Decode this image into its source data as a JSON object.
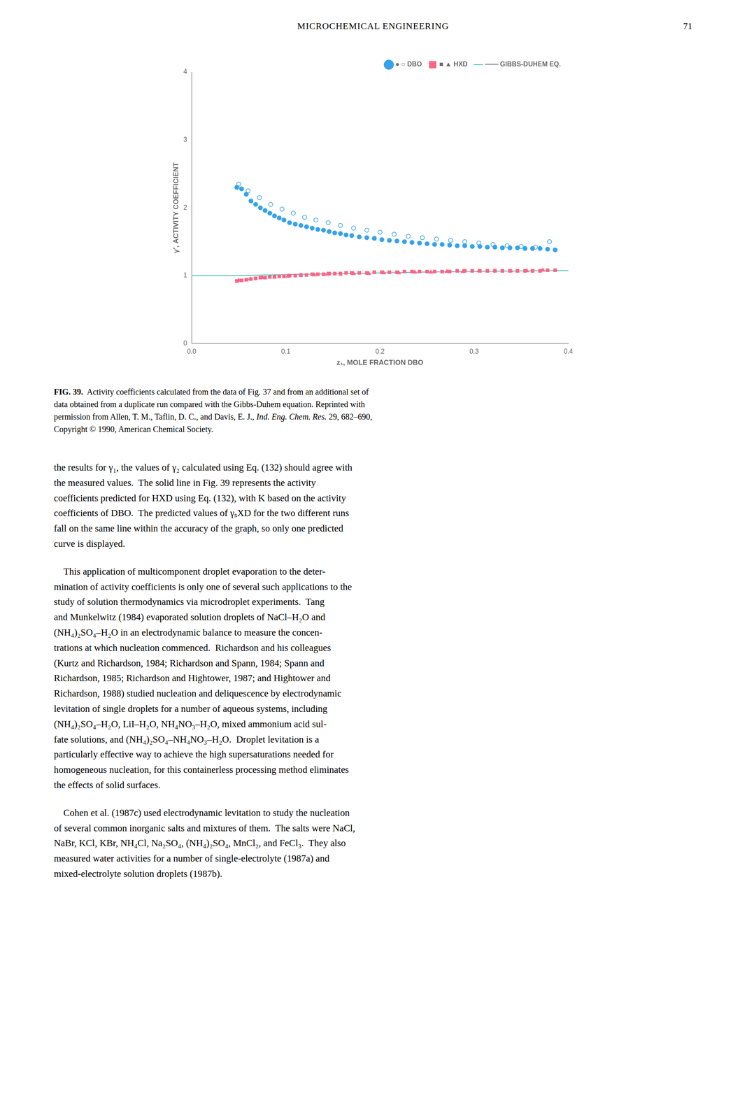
{
  "page_header": "MICROCHEMICAL ENGINEERING",
  "page_number": "71",
  "caption": {
    "label": "FIG. 39.",
    "text": "  Activity coefficients calculated from the data of Fig. 37 and from an additional set of\ndata obtained from a duplicate run compared with the Gibbs-Duhem equation. Reprinted with\npermission from Allen, T. M., Taflin, D. C., and Davis, E. J., ",
    "italic": "Ind. Eng. Chem. Res.",
    "end": " 29, 682–690,\nCopyright © 1990, American Chemical Society."
  },
  "body_text": [
    "the results for γ₁, the values of γ₂ calculated using Eq. (132) should agree with\nthe measured values.  The solid line in Fig. 39 represents the activity\ncoefficients predicted for HXD using Eq. (132), with K based on the activity\ncoefficients of DBO.  The predicted values of γₛXD for the two different runs\nfall on the same line within the accuracy of the graph, so only one predicted\ncurve is displayed.",
    "    This application of multicomponent droplet evaporation to the deter-\nmination of activity coefficients is only one of several such applications to the\nstudy of solution thermodynamics via microdroplet experiments.  Tang\nand Munkelwitz (1984) evaporated solution droplets of NaCl–H₂O and\n(NH₄)₂SO₄–H₂O in an electrodynamic balance to measure the concen-\ntrations at which nucleation commenced.  Richardson and his colleagues\n(Kurtz and Richardson, 1984; Richardson and Spann, 1984; Spann and\nRichardson, 1985; Richardson and Hightower, 1987; and Hightower and\nRichardson, 1988) studied nucleation and deliquescence by electrodynamic\nlevitation of single droplets for a number of aqueous systems, including\n(NH₄)₂SO₄–H₂O, LiI–H₂O, NH₄NO₃–H₂O, mixed ammonium acid sul-\nfate solutions, and (NH₄)₂SO₄–NH₄NO₃–H₂O.  Droplet levitation is a\nparticularly effective way to achieve the high supersaturations needed for\nhomogeneous nucleation, for this containerless processing method eliminates\nthe effects of solid surfaces.",
    "    Cohen et al. (1987c) used electrodynamic levitation to study the nucleation\nof several common inorganic salts and mixtures of them.  The salts were NaCl,\nNaBr, KCl, KBr, NH₄Cl, Na₂SO₄, (NH₄)₂SO₄, MnCl₂, and FeCl₃.  They also\nmeasured water activities for a number of single-electrolyte (1987a) and\nmixed-electrolyte solution droplets (1987b)."
  ],
  "chart_data": {
    "type": "scatter",
    "xlabel": "z₁, MOLE FRACTION DBO",
    "ylabel": "γ′, ACTIVITY COEFFICIENT",
    "xlim": [
      0,
      0.4
    ],
    "ylim": [
      0,
      4
    ],
    "xticks": [
      {
        "value": 0,
        "label": "0.0"
      },
      0.1,
      0.2,
      0.3,
      0.4
    ],
    "yticks": [
      0,
      1,
      2,
      3,
      4
    ],
    "grid": false,
    "legend": "upper right",
    "series": [
      {
        "name": "● ○ DBO",
        "color": "#36a2eb",
        "marker": "circle",
        "x": [
          0.048,
          0.053,
          0.058,
          0.063,
          0.068,
          0.073,
          0.078,
          0.083,
          0.088,
          0.093,
          0.098,
          0.104,
          0.11,
          0.116,
          0.122,
          0.128,
          0.134,
          0.14,
          0.146,
          0.152,
          0.158,
          0.164,
          0.17,
          0.178,
          0.186,
          0.194,
          0.202,
          0.21,
          0.218,
          0.226,
          0.234,
          0.242,
          0.25,
          0.258,
          0.266,
          0.274,
          0.282,
          0.29,
          0.298,
          0.306,
          0.314,
          0.322,
          0.33,
          0.338,
          0.346,
          0.354,
          0.362,
          0.37,
          0.378,
          0.386
        ],
        "values": [
          2.3,
          2.28,
          2.2,
          2.1,
          2.05,
          2.0,
          1.96,
          1.92,
          1.88,
          1.85,
          1.82,
          1.78,
          1.76,
          1.74,
          1.72,
          1.7,
          1.68,
          1.67,
          1.65,
          1.63,
          1.62,
          1.6,
          1.59,
          1.57,
          1.56,
          1.55,
          1.53,
          1.52,
          1.51,
          1.5,
          1.49,
          1.48,
          1.47,
          1.46,
          1.46,
          1.45,
          1.44,
          1.44,
          1.43,
          1.43,
          1.42,
          1.42,
          1.41,
          1.41,
          1.41,
          1.4,
          1.4,
          1.4,
          1.39,
          1.38
        ]
      },
      {
        "name": "● ○ DBO",
        "color": "#36a2eb",
        "marker": "open_circle",
        "x": [
          0.05,
          0.06,
          0.072,
          0.084,
          0.096,
          0.108,
          0.12,
          0.132,
          0.145,
          0.158,
          0.172,
          0.186,
          0.2,
          0.215,
          0.23,
          0.245,
          0.26,
          0.275,
          0.29,
          0.305,
          0.32,
          0.335,
          0.35,
          0.365,
          0.38
        ],
        "values": [
          2.35,
          2.25,
          2.15,
          2.05,
          1.98,
          1.92,
          1.86,
          1.82,
          1.78,
          1.74,
          1.7,
          1.67,
          1.64,
          1.61,
          1.58,
          1.56,
          1.54,
          1.52,
          1.5,
          1.48,
          1.46,
          1.44,
          1.43,
          1.42,
          1.5
        ]
      },
      {
        "name": "■ ▲ HXD",
        "color": "#ff6384",
        "marker": "square",
        "x": [
          0.048,
          0.053,
          0.058,
          0.063,
          0.068,
          0.073,
          0.078,
          0.083,
          0.088,
          0.093,
          0.098,
          0.104,
          0.11,
          0.116,
          0.122,
          0.128,
          0.134,
          0.14,
          0.146,
          0.152,
          0.158,
          0.164,
          0.17,
          0.178,
          0.186,
          0.194,
          0.202,
          0.21,
          0.218,
          0.226,
          0.234,
          0.242,
          0.25,
          0.258,
          0.266,
          0.274,
          0.282,
          0.29,
          0.298,
          0.306,
          0.314,
          0.322,
          0.33,
          0.338,
          0.346,
          0.354,
          0.362,
          0.37,
          0.378,
          0.386
        ],
        "values": [
          0.92,
          0.93,
          0.94,
          0.95,
          0.96,
          0.97,
          0.97,
          0.98,
          0.98,
          0.99,
          0.99,
          1.0,
          1.0,
          1.01,
          1.01,
          1.02,
          1.02,
          1.02,
          1.03,
          1.03,
          1.03,
          1.04,
          1.04,
          1.04,
          1.04,
          1.05,
          1.05,
          1.05,
          1.05,
          1.06,
          1.06,
          1.06,
          1.06,
          1.06,
          1.06,
          1.06,
          1.07,
          1.07,
          1.07,
          1.07,
          1.07,
          1.07,
          1.07,
          1.07,
          1.07,
          1.07,
          1.07,
          1.07,
          1.08,
          1.08
        ]
      },
      {
        "name": "■ ▲ HXD",
        "color": "#ff6384",
        "marker": "triangle",
        "x": [
          0.05,
          0.062,
          0.075,
          0.088,
          0.102,
          0.116,
          0.13,
          0.144,
          0.158,
          0.172,
          0.188,
          0.204,
          0.22,
          0.237,
          0.254,
          0.271,
          0.288,
          0.305,
          0.322,
          0.339,
          0.356,
          0.373
        ],
        "values": [
          0.93,
          0.95,
          0.97,
          0.98,
          0.99,
          1.0,
          1.01,
          1.02,
          1.02,
          1.03,
          1.03,
          1.04,
          1.04,
          1.05,
          1.05,
          1.06,
          1.06,
          1.07,
          1.07,
          1.07,
          1.07,
          1.08
        ]
      },
      {
        "name": "—— GIBBS-DUHEM EQ.",
        "color": "#4bc0c0",
        "type": "line",
        "line_style": "solid",
        "x": [
          0.0,
          0.04,
          0.08,
          0.12,
          0.16,
          0.2,
          0.24,
          0.28,
          0.32,
          0.36,
          0.4
        ],
        "values": [
          1.0,
          1.0,
          1.01,
          1.02,
          1.03,
          1.04,
          1.05,
          1.06,
          1.065,
          1.07,
          1.075
        ]
      }
    ]
  }
}
